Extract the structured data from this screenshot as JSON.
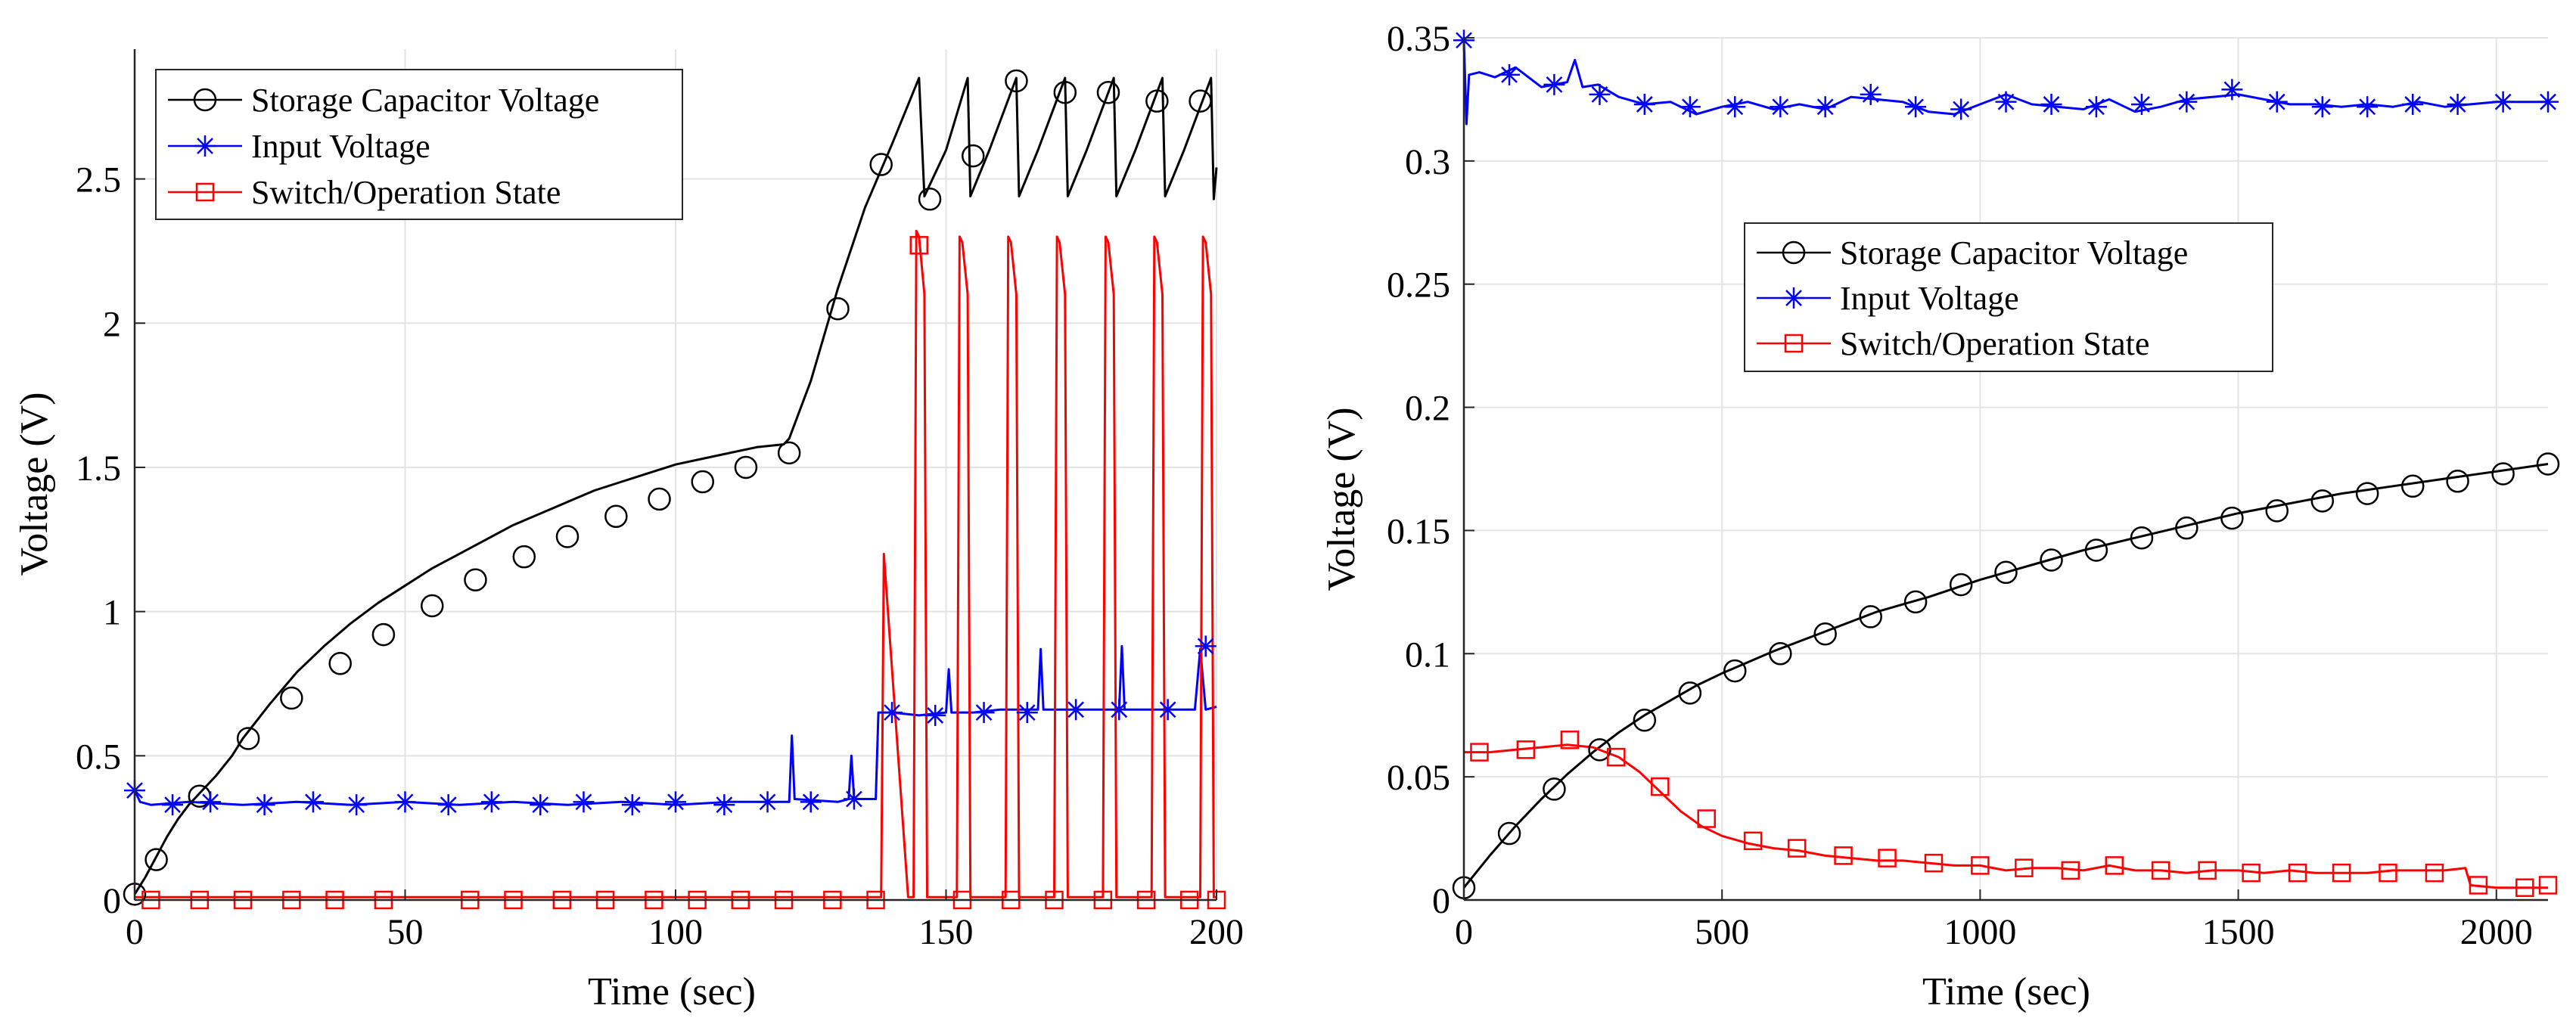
{
  "chart_data": [
    {
      "type": "line",
      "title": "",
      "xlabel": "Time (sec)",
      "ylabel": "Voltage (V)",
      "xlim": [
        0,
        200
      ],
      "ylim": [
        0,
        2.95
      ],
      "xticks": [
        0,
        50,
        100,
        150,
        200
      ],
      "xtick_labels": [
        "0",
        "50",
        "100",
        "150",
        "200"
      ],
      "yticks": [
        0,
        0.5,
        1,
        1.5,
        2,
        2.5
      ],
      "ytick_labels": [
        "0",
        "0.5",
        "1",
        "1.5",
        "2",
        "2.5"
      ],
      "grid": true,
      "legend_position": "top-left",
      "series": [
        {
          "name": "Storage Capacitor Voltage",
          "color": "#000000",
          "marker": "circle",
          "x": [
            0,
            2,
            4,
            6,
            8,
            10,
            12,
            15,
            18,
            20,
            25,
            30,
            35,
            40,
            45,
            50,
            55,
            60,
            65,
            70,
            75,
            80,
            85,
            90,
            95,
            100,
            105,
            110,
            115,
            120,
            121,
            125,
            130,
            135,
            140,
            145,
            146,
            150,
            154,
            154.5,
            158,
            163,
            163.5,
            167,
            172,
            172.5,
            176,
            181,
            181.5,
            185,
            190,
            190.5,
            194,
            199,
            199.5,
            200
          ],
          "values": [
            0.02,
            0.08,
            0.15,
            0.22,
            0.28,
            0.33,
            0.37,
            0.43,
            0.5,
            0.56,
            0.68,
            0.79,
            0.88,
            0.96,
            1.03,
            1.09,
            1.15,
            1.2,
            1.25,
            1.3,
            1.34,
            1.38,
            1.42,
            1.45,
            1.48,
            1.51,
            1.53,
            1.55,
            1.57,
            1.58,
            1.6,
            1.8,
            2.12,
            2.4,
            2.62,
            2.85,
            2.44,
            2.6,
            2.85,
            2.44,
            2.6,
            2.85,
            2.44,
            2.6,
            2.85,
            2.44,
            2.6,
            2.85,
            2.44,
            2.6,
            2.85,
            2.44,
            2.6,
            2.85,
            2.43,
            2.54
          ],
          "marker_x": [
            0,
            4,
            12,
            21,
            29,
            38,
            46,
            55,
            63,
            72,
            80,
            89,
            97,
            105,
            113,
            121,
            130,
            138,
            147,
            155,
            163,
            172,
            180,
            189,
            197
          ],
          "marker_values": [
            0.02,
            0.14,
            0.36,
            0.56,
            0.7,
            0.82,
            0.92,
            1.02,
            1.11,
            1.19,
            1.26,
            1.33,
            1.39,
            1.45,
            1.5,
            1.55,
            2.05,
            2.55,
            2.43,
            2.58,
            2.84,
            2.8,
            2.8,
            2.77,
            2.77
          ]
        },
        {
          "name": "Input Voltage",
          "color": "#0000ff",
          "marker": "asterisk",
          "x": [
            0,
            1,
            3,
            10,
            20,
            30,
            40,
            50,
            60,
            70,
            80,
            90,
            100,
            110,
            120,
            121,
            121.5,
            122,
            130,
            132,
            132.5,
            133,
            137,
            137.5,
            140,
            145,
            150,
            150.5,
            151,
            155,
            160,
            167,
            167.5,
            168,
            175,
            182,
            182.5,
            183,
            190,
            196,
            197,
            198,
            200
          ],
          "values": [
            0.38,
            0.34,
            0.33,
            0.34,
            0.33,
            0.34,
            0.33,
            0.34,
            0.33,
            0.34,
            0.33,
            0.34,
            0.33,
            0.34,
            0.34,
            0.34,
            0.57,
            0.35,
            0.34,
            0.35,
            0.5,
            0.35,
            0.35,
            0.65,
            0.65,
            0.64,
            0.65,
            0.8,
            0.65,
            0.65,
            0.66,
            0.66,
            0.87,
            0.66,
            0.66,
            0.66,
            0.88,
            0.66,
            0.66,
            0.66,
            0.87,
            0.66,
            0.67
          ],
          "marker_x": [
            0,
            7,
            14,
            24,
            33,
            41,
            50,
            58,
            66,
            75,
            83,
            92,
            100,
            109,
            117,
            125,
            133,
            140,
            148,
            157,
            165,
            174,
            182,
            191,
            198
          ],
          "marker_values": [
            0.38,
            0.33,
            0.34,
            0.33,
            0.34,
            0.33,
            0.34,
            0.33,
            0.34,
            0.33,
            0.34,
            0.33,
            0.34,
            0.33,
            0.34,
            0.34,
            0.35,
            0.65,
            0.64,
            0.65,
            0.65,
            0.66,
            0.66,
            0.66,
            0.88
          ]
        },
        {
          "name": "Switch/Operation State",
          "color": "#ff0000",
          "marker": "square",
          "x": [
            0,
            20,
            40,
            60,
            80,
            100,
            120,
            137,
            138,
            138.5,
            143,
            144,
            144.5,
            145,
            146,
            146.5,
            152,
            152.5,
            153,
            154,
            154.5,
            161,
            161.5,
            162,
            163,
            163.5,
            170,
            170.5,
            171,
            172,
            172.5,
            179,
            179.5,
            180,
            181,
            181.5,
            188,
            188.5,
            189,
            190,
            190.5,
            197,
            197.5,
            198,
            199,
            199.5,
            200
          ],
          "values": [
            0.01,
            0.01,
            0.01,
            0.01,
            0.01,
            0.01,
            0.01,
            0.01,
            0.01,
            1.2,
            0.01,
            0.01,
            2.32,
            2.3,
            2.1,
            0.01,
            0.01,
            2.3,
            2.28,
            2.1,
            0.01,
            0.01,
            2.3,
            2.28,
            2.1,
            0.01,
            0.01,
            2.3,
            2.28,
            2.1,
            0.01,
            0.01,
            2.3,
            2.28,
            2.1,
            0.01,
            0.01,
            2.3,
            2.28,
            2.1,
            0.01,
            0.01,
            2.3,
            2.28,
            2.1,
            0.01,
            0.01
          ],
          "marker_x": [
            3,
            12,
            20,
            29,
            37,
            46,
            62,
            70,
            79,
            87,
            96,
            104,
            112,
            120,
            129,
            137,
            145,
            153,
            162,
            170,
            179,
            187,
            195,
            200
          ],
          "marker_values": [
            0,
            0,
            0,
            0,
            0,
            0,
            0,
            0,
            0,
            0,
            0,
            0,
            0,
            0,
            0,
            0,
            2.27,
            0,
            0,
            0,
            0,
            0,
            0,
            0
          ]
        }
      ]
    },
    {
      "type": "line",
      "title": "",
      "xlabel": "Time (sec)",
      "ylabel": "Voltage (V)",
      "xlim": [
        0,
        2100
      ],
      "ylim": [
        0,
        0.35
      ],
      "xticks": [
        0,
        500,
        1000,
        1500,
        2000
      ],
      "xtick_labels": [
        "0",
        "500",
        "1000",
        "1500",
        "2000"
      ],
      "yticks": [
        0,
        0.05,
        0.1,
        0.15,
        0.2,
        0.25,
        0.3,
        0.35
      ],
      "ytick_labels": [
        "0",
        "0.05",
        "0.1",
        "0.15",
        "0.2",
        "0.25",
        "0.3",
        "0.35"
      ],
      "grid": true,
      "legend_position": "center-left",
      "series": [
        {
          "name": "Storage Capacitor Voltage",
          "color": "#000000",
          "marker": "circle",
          "x": [
            0,
            50,
            100,
            150,
            200,
            250,
            300,
            350,
            400,
            450,
            500,
            600,
            700,
            800,
            900,
            1000,
            1100,
            1200,
            1300,
            1400,
            1500,
            1600,
            1700,
            1800,
            1900,
            2000,
            2100
          ],
          "values": [
            0.005,
            0.018,
            0.03,
            0.041,
            0.051,
            0.06,
            0.068,
            0.075,
            0.081,
            0.087,
            0.092,
            0.101,
            0.109,
            0.117,
            0.123,
            0.13,
            0.136,
            0.142,
            0.147,
            0.152,
            0.157,
            0.161,
            0.165,
            0.168,
            0.171,
            0.174,
            0.177
          ],
          "marker_x": [
            0,
            88,
            175,
            263,
            350,
            438,
            525,
            613,
            700,
            788,
            875,
            963,
            1050,
            1138,
            1225,
            1313,
            1400,
            1488,
            1575,
            1663,
            1750,
            1838,
            1925,
            2013,
            2100
          ],
          "marker_values": [
            0.005,
            0.027,
            0.045,
            0.061,
            0.073,
            0.084,
            0.093,
            0.1,
            0.108,
            0.115,
            0.121,
            0.128,
            0.133,
            0.138,
            0.142,
            0.147,
            0.151,
            0.155,
            0.158,
            0.162,
            0.165,
            0.168,
            0.17,
            0.173,
            0.177
          ]
        },
        {
          "name": "Input Voltage",
          "color": "#0000ff",
          "marker": "asterisk",
          "x": [
            0,
            5,
            10,
            30,
            60,
            100,
            150,
            200,
            215,
            230,
            260,
            300,
            350,
            400,
            450,
            500,
            550,
            600,
            650,
            700,
            750,
            800,
            850,
            900,
            950,
            1000,
            1050,
            1100,
            1150,
            1200,
            1250,
            1300,
            1350,
            1400,
            1450,
            1500,
            1550,
            1600,
            1650,
            1700,
            1750,
            1800,
            1850,
            1900,
            1950,
            2000,
            2050,
            2100
          ],
          "values": [
            0.349,
            0.315,
            0.335,
            0.336,
            0.334,
            0.338,
            0.33,
            0.332,
            0.341,
            0.33,
            0.331,
            0.326,
            0.323,
            0.324,
            0.319,
            0.322,
            0.324,
            0.321,
            0.323,
            0.321,
            0.326,
            0.325,
            0.324,
            0.32,
            0.319,
            0.323,
            0.327,
            0.323,
            0.322,
            0.321,
            0.325,
            0.32,
            0.322,
            0.325,
            0.326,
            0.327,
            0.325,
            0.323,
            0.323,
            0.322,
            0.323,
            0.322,
            0.324,
            0.322,
            0.323,
            0.324,
            0.324,
            0.324
          ],
          "marker_x": [
            0,
            88,
            175,
            263,
            350,
            438,
            525,
            613,
            700,
            788,
            875,
            963,
            1050,
            1138,
            1225,
            1313,
            1400,
            1488,
            1575,
            1663,
            1750,
            1838,
            1925,
            2013,
            2100
          ],
          "marker_values": [
            0.349,
            0.335,
            0.331,
            0.327,
            0.323,
            0.322,
            0.322,
            0.322,
            0.322,
            0.327,
            0.322,
            0.321,
            0.324,
            0.323,
            0.322,
            0.323,
            0.324,
            0.329,
            0.324,
            0.322,
            0.322,
            0.323,
            0.323,
            0.324,
            0.324
          ]
        },
        {
          "name": "Switch/Operation State",
          "color": "#ff0000",
          "marker": "square",
          "x": [
            0,
            50,
            100,
            150,
            200,
            250,
            300,
            340,
            380,
            420,
            460,
            500,
            550,
            600,
            650,
            700,
            750,
            800,
            850,
            900,
            950,
            1000,
            1050,
            1100,
            1150,
            1200,
            1250,
            1300,
            1350,
            1400,
            1450,
            1500,
            1550,
            1600,
            1650,
            1700,
            1750,
            1800,
            1850,
            1900,
            1940,
            1950,
            2000,
            2050,
            2100
          ],
          "values": [
            0.06,
            0.06,
            0.061,
            0.062,
            0.063,
            0.062,
            0.058,
            0.052,
            0.044,
            0.036,
            0.03,
            0.026,
            0.023,
            0.021,
            0.02,
            0.018,
            0.017,
            0.016,
            0.016,
            0.015,
            0.014,
            0.014,
            0.012,
            0.013,
            0.013,
            0.012,
            0.014,
            0.012,
            0.012,
            0.011,
            0.012,
            0.012,
            0.011,
            0.012,
            0.011,
            0.011,
            0.011,
            0.012,
            0.012,
            0.012,
            0.013,
            0.006,
            0.005,
            0.005,
            0.005
          ],
          "marker_x": [
            30,
            120,
            205,
            295,
            380,
            470,
            560,
            645,
            735,
            820,
            910,
            1000,
            1085,
            1175,
            1260,
            1350,
            1440,
            1525,
            1615,
            1700,
            1790,
            1880,
            1965,
            2055,
            2100
          ],
          "marker_values": [
            0.06,
            0.061,
            0.065,
            0.058,
            0.046,
            0.033,
            0.024,
            0.021,
            0.018,
            0.017,
            0.015,
            0.014,
            0.013,
            0.012,
            0.014,
            0.012,
            0.012,
            0.011,
            0.011,
            0.011,
            0.011,
            0.011,
            0.006,
            0.005,
            0.006
          ]
        }
      ]
    }
  ]
}
